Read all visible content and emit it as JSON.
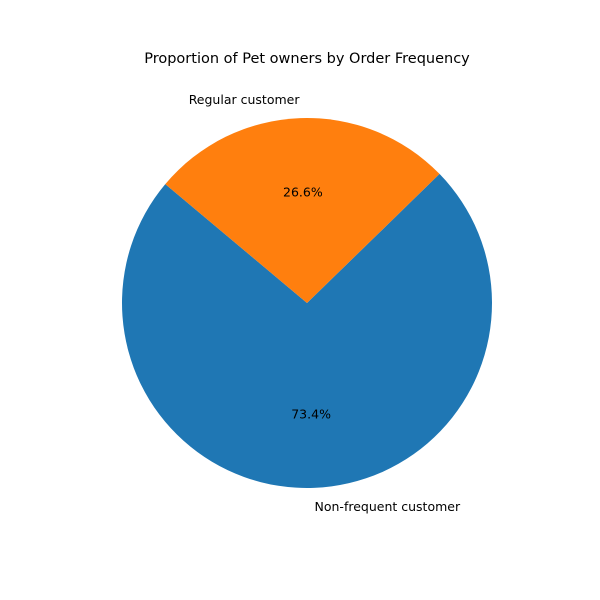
{
  "chart_data": {
    "type": "pie",
    "title": "Proportion of Pet owners by Order Frequency",
    "categories": [
      "Non-frequent customer",
      "Regular customer"
    ],
    "values": [
      73.4,
      26.6
    ],
    "value_labels": [
      "73.4%",
      "26.6%"
    ],
    "colors": [
      "#1f77b4",
      "#ff7f0e"
    ],
    "start_angle_deg": 140,
    "direction": "counterclockwise",
    "legend": "none"
  }
}
